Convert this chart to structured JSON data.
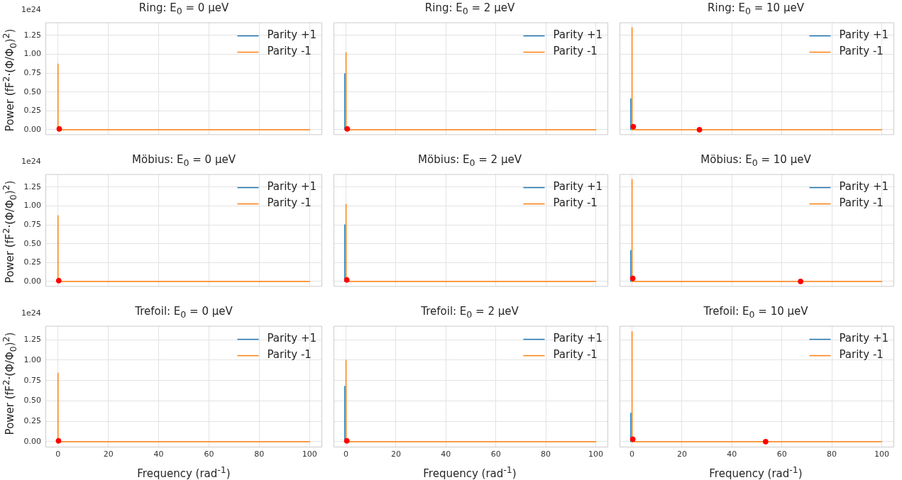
{
  "chart_data": [
    {
      "type": "line",
      "title": "Ring: E$_{0}$ = 0 μeV",
      "ylabel": "Power (fF$^{2}$·(Φ/Φ$_{0}$)$^{2}$)",
      "annotations": [
        "1e24"
      ],
      "xlim": [
        -5,
        105
      ],
      "ylim": [
        -0.07,
        1.42
      ],
      "xticks": [
        0,
        20,
        40,
        60,
        80,
        100
      ],
      "yticks": [
        {
          "value": 0,
          "label": "0.00"
        },
        0.25,
        {
          "value": 0.5,
          "label": "0.50"
        },
        0.75,
        {
          "value": 1,
          "label": "1.00"
        },
        1.25
      ],
      "grid": true,
      "legend": "top right",
      "tick_labels": "y",
      "series": [
        {
          "name": "Parity +1",
          "color": "#1f77b4"
        },
        {
          "name": "Parity -1",
          "color": "#ff7f0e",
          "x": [
            0,
            0,
            100
          ],
          "values": [
            0.87,
            0,
            0
          ]
        },
        {
          "type": "scatter",
          "marker": "circle",
          "color": "#ff0000",
          "x": [
            0.5
          ],
          "values": [
            0.01
          ]
        }
      ]
    },
    {
      "type": "line",
      "title": "Ring: E$_{0}$ = 2 μeV",
      "xlim": [
        -5,
        105
      ],
      "ylim": [
        -0.07,
        1.42
      ],
      "xticks": [
        0,
        20,
        40,
        60,
        80,
        100
      ],
      "yticks": [
        0,
        0.25,
        0.5,
        0.75,
        1,
        1.25
      ],
      "grid": true,
      "legend": "top right",
      "tick_labels": false,
      "series": [
        {
          "name": "Parity +1",
          "color": "#1f77b4",
          "x": [
            -0.5,
            -0.5
          ],
          "values": [
            0.74,
            0
          ]
        },
        {
          "name": "Parity -1",
          "color": "#ff7f0e",
          "x": [
            0,
            0,
            100
          ],
          "values": [
            1.02,
            0,
            0
          ]
        },
        {
          "type": "scatter",
          "marker": "circle",
          "color": "#ff0000",
          "x": [
            0.5
          ],
          "values": [
            0.01
          ]
        }
      ]
    },
    {
      "type": "line",
      "title": "Ring: E$_{0}$ = 10 μeV",
      "xlim": [
        -5,
        105
      ],
      "ylim": [
        -0.07,
        1.42
      ],
      "xticks": [
        0,
        20,
        40,
        60,
        80,
        100
      ],
      "yticks": [
        0,
        0.25,
        0.5,
        0.75,
        1,
        1.25
      ],
      "grid": true,
      "legend": "top right",
      "tick_labels": false,
      "series": [
        {
          "name": "Parity +1",
          "color": "#1f77b4",
          "x": [
            -0.5,
            -0.5
          ],
          "values": [
            0.41,
            0
          ]
        },
        {
          "name": "Parity -1",
          "color": "#ff7f0e",
          "x": [
            0,
            0,
            100
          ],
          "values": [
            1.35,
            0,
            0
          ]
        },
        {
          "type": "scatter",
          "marker": "circle",
          "color": "#ff0000",
          "x": [
            0.5,
            27
          ],
          "values": [
            0.04,
            0
          ]
        }
      ]
    },
    {
      "type": "line",
      "title": "Möbius: E$_{0}$ = 0 μeV",
      "ylabel": "Power (fF$^{2}$·(Φ/Φ$_{0}$)$^{2}$)",
      "annotations": [
        "1e24"
      ],
      "xlim": [
        -5,
        105
      ],
      "ylim": [
        -0.07,
        1.42
      ],
      "xticks": [
        0,
        20,
        40,
        60,
        80,
        100
      ],
      "yticks": [
        {
          "value": 0,
          "label": "0.00"
        },
        0.25,
        {
          "value": 0.5,
          "label": "0.50"
        },
        0.75,
        {
          "value": 1,
          "label": "1.00"
        },
        1.25
      ],
      "grid": true,
      "legend": "top right",
      "tick_labels": "y",
      "series": [
        {
          "name": "Parity +1",
          "color": "#1f77b4"
        },
        {
          "name": "Parity -1",
          "color": "#ff7f0e",
          "x": [
            0,
            0,
            100
          ],
          "values": [
            0.87,
            0,
            0
          ]
        },
        {
          "type": "scatter",
          "marker": "circle",
          "color": "#ff0000",
          "x": [
            0.3
          ],
          "values": [
            0.01
          ]
        }
      ]
    },
    {
      "type": "line",
      "title": "Möbius: E$_{0}$ = 2 μeV",
      "xlim": [
        -5,
        105
      ],
      "ylim": [
        -0.07,
        1.42
      ],
      "xticks": [
        0,
        20,
        40,
        60,
        80,
        100
      ],
      "yticks": [
        0,
        0.25,
        0.5,
        0.75,
        1,
        1.25
      ],
      "grid": true,
      "legend": "top right",
      "tick_labels": false,
      "series": [
        {
          "name": "Parity +1",
          "color": "#1f77b4",
          "x": [
            -0.5,
            -0.5
          ],
          "values": [
            0.75,
            0
          ]
        },
        {
          "name": "Parity -1",
          "color": "#ff7f0e",
          "x": [
            0,
            0,
            100
          ],
          "values": [
            1.02,
            0,
            0
          ]
        },
        {
          "type": "scatter",
          "marker": "circle",
          "color": "#ff0000",
          "x": [
            0.3
          ],
          "values": [
            0.02
          ]
        }
      ]
    },
    {
      "type": "line",
      "title": "Möbius: E$_{0}$ = 10 μeV",
      "xlim": [
        -5,
        105
      ],
      "ylim": [
        -0.07,
        1.42
      ],
      "xticks": [
        0,
        20,
        40,
        60,
        80,
        100
      ],
      "yticks": [
        0,
        0.25,
        0.5,
        0.75,
        1,
        1.25
      ],
      "grid": true,
      "legend": "top right",
      "tick_labels": false,
      "series": [
        {
          "name": "Parity +1",
          "color": "#1f77b4",
          "x": [
            -0.5,
            -0.5
          ],
          "values": [
            0.41,
            0
          ]
        },
        {
          "name": "Parity -1",
          "color": "#ff7f0e",
          "x": [
            0,
            0,
            100
          ],
          "values": [
            1.35,
            0,
            0
          ]
        },
        {
          "type": "scatter",
          "marker": "circle",
          "color": "#ff0000",
          "x": [
            0.3,
            67.5
          ],
          "values": [
            0.04,
            0
          ]
        }
      ]
    },
    {
      "type": "line",
      "title": "Trefoil: E$_{0}$ = 0 μeV",
      "xlabel": "Frequency (rad$^{-1}$)",
      "ylabel": "Power (fF$^{2}$·(Φ/Φ$_{0}$)$^{2}$)",
      "annotations": [
        "1e24"
      ],
      "xlim": [
        -5,
        105
      ],
      "ylim": [
        -0.07,
        1.42
      ],
      "xticks": [
        0,
        20,
        40,
        60,
        80,
        100
      ],
      "yticks": [
        {
          "value": 0,
          "label": "0.00"
        },
        0.25,
        {
          "value": 0.5,
          "label": "0.50"
        },
        0.75,
        {
          "value": 1,
          "label": "1.00"
        },
        1.25
      ],
      "grid": true,
      "legend": "top right",
      "series": [
        {
          "name": "Parity +1",
          "color": "#1f77b4"
        },
        {
          "name": "Parity -1",
          "color": "#ff7f0e",
          "x": [
            0,
            0,
            100
          ],
          "values": [
            0.84,
            0,
            0
          ]
        },
        {
          "type": "scatter",
          "marker": "circle",
          "color": "#ff0000",
          "x": [
            0.2
          ],
          "values": [
            0.01
          ]
        }
      ]
    },
    {
      "type": "line",
      "title": "Trefoil: E$_{0}$ = 2 μeV",
      "xlabel": "Frequency (rad$^{-1}$)",
      "xlim": [
        -5,
        105
      ],
      "ylim": [
        -0.07,
        1.42
      ],
      "xticks": [
        0,
        20,
        40,
        60,
        80,
        100
      ],
      "yticks": [
        0,
        0.25,
        0.5,
        0.75,
        1,
        1.25
      ],
      "grid": true,
      "legend": "top right",
      "tick_labels": "x",
      "series": [
        {
          "name": "Parity +1",
          "color": "#1f77b4",
          "x": [
            -0.5,
            -0.5
          ],
          "values": [
            0.68,
            0
          ]
        },
        {
          "name": "Parity -1",
          "color": "#ff7f0e",
          "x": [
            0,
            0,
            100
          ],
          "values": [
            1.0,
            0,
            0
          ]
        },
        {
          "type": "scatter",
          "marker": "circle",
          "color": "#ff0000",
          "x": [
            0.3
          ],
          "values": [
            0.01
          ]
        }
      ]
    },
    {
      "type": "line",
      "title": "Trefoil: E$_{0}$ = 10 μeV",
      "xlabel": "Frequency (rad$^{-1}$)",
      "xlim": [
        -5,
        105
      ],
      "ylim": [
        -0.07,
        1.42
      ],
      "xticks": [
        0,
        20,
        40,
        60,
        80,
        100
      ],
      "yticks": [
        0,
        0.25,
        0.5,
        0.75,
        1,
        1.25
      ],
      "grid": true,
      "legend": "top right",
      "tick_labels": "x",
      "series": [
        {
          "name": "Parity +1",
          "color": "#1f77b4",
          "x": [
            -0.5,
            -0.5
          ],
          "values": [
            0.35,
            0
          ]
        },
        {
          "name": "Parity -1",
          "color": "#ff7f0e",
          "x": [
            0,
            0,
            100
          ],
          "values": [
            1.35,
            0,
            0
          ]
        },
        {
          "type": "scatter",
          "marker": "circle",
          "color": "#ff0000",
          "x": [
            0.3,
            53.5
          ],
          "values": [
            0.03,
            0
          ]
        }
      ]
    }
  ]
}
